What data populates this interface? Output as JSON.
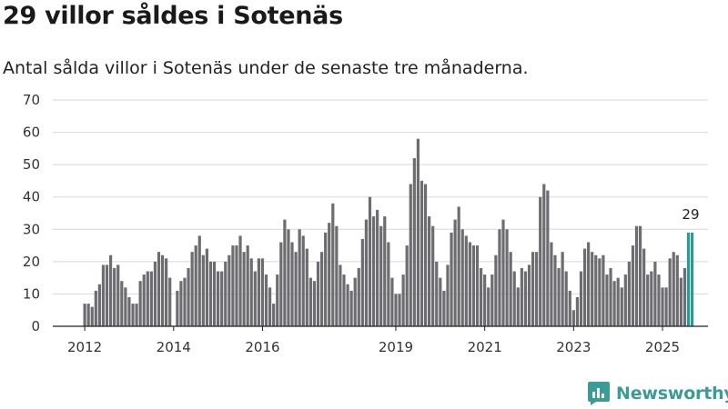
{
  "title": "29 villor såldes i Sotenäs",
  "subtitle": "Antal sålda villor i Sotenäs under de senaste tre månaderna.",
  "brand": {
    "name": "Newsworthy",
    "logo_icon": "newsworthy-logo-icon"
  },
  "colors": {
    "bar": "#6d6c70",
    "highlight": "#2a9a92",
    "grid": "#d8d8d8",
    "brand": "#3b9b95"
  },
  "chart_data": {
    "type": "bar",
    "title": "29 villor såldes i Sotenäs",
    "xlabel": "",
    "ylabel": "",
    "ylim": [
      0,
      70
    ],
    "yticks": [
      "0",
      "10",
      "20",
      "30",
      "40",
      "50",
      "60",
      "70"
    ],
    "xticks": [
      {
        "label": "2012",
        "index": 0
      },
      {
        "label": "2014",
        "index": 24
      },
      {
        "label": "2016",
        "index": 48
      },
      {
        "label": "2019",
        "index": 84
      },
      {
        "label": "2021",
        "index": 108
      },
      {
        "label": "2023",
        "index": 132
      },
      {
        "label": "2025",
        "index": 156
      }
    ],
    "grid": true,
    "highlight_label": "29",
    "values": [
      7,
      7,
      6,
      11,
      13,
      19,
      19,
      22,
      18,
      19,
      14,
      12,
      9,
      7,
      7,
      14,
      16,
      17,
      17,
      20,
      23,
      22,
      21,
      15,
      null,
      11,
      14,
      15,
      18,
      23,
      25,
      28,
      22,
      24,
      20,
      20,
      17,
      17,
      20,
      22,
      25,
      25,
      28,
      23,
      25,
      21,
      17,
      21,
      21,
      16,
      12,
      7,
      16,
      26,
      33,
      30,
      26,
      23,
      30,
      28,
      24,
      15,
      14,
      20,
      23,
      29,
      32,
      38,
      31,
      19,
      16,
      13,
      11,
      15,
      18,
      27,
      33,
      40,
      34,
      36,
      31,
      34,
      26,
      15,
      10,
      10,
      16,
      25,
      44,
      52,
      58,
      45,
      44,
      34,
      31,
      20,
      15,
      11,
      19,
      29,
      33,
      37,
      30,
      28,
      26,
      25,
      25,
      18,
      16,
      12,
      16,
      22,
      30,
      33,
      30,
      23,
      17,
      12,
      18,
      17,
      19,
      23,
      23,
      40,
      44,
      42,
      26,
      22,
      18,
      23,
      17,
      11,
      5,
      9,
      17,
      24,
      26,
      23,
      22,
      21,
      22,
      16,
      18,
      14,
      15,
      12,
      16,
      20,
      25,
      31,
      31,
      24,
      16,
      17,
      20,
      16,
      12,
      12,
      21,
      23,
      22,
      15,
      18,
      29,
      29
    ]
  }
}
